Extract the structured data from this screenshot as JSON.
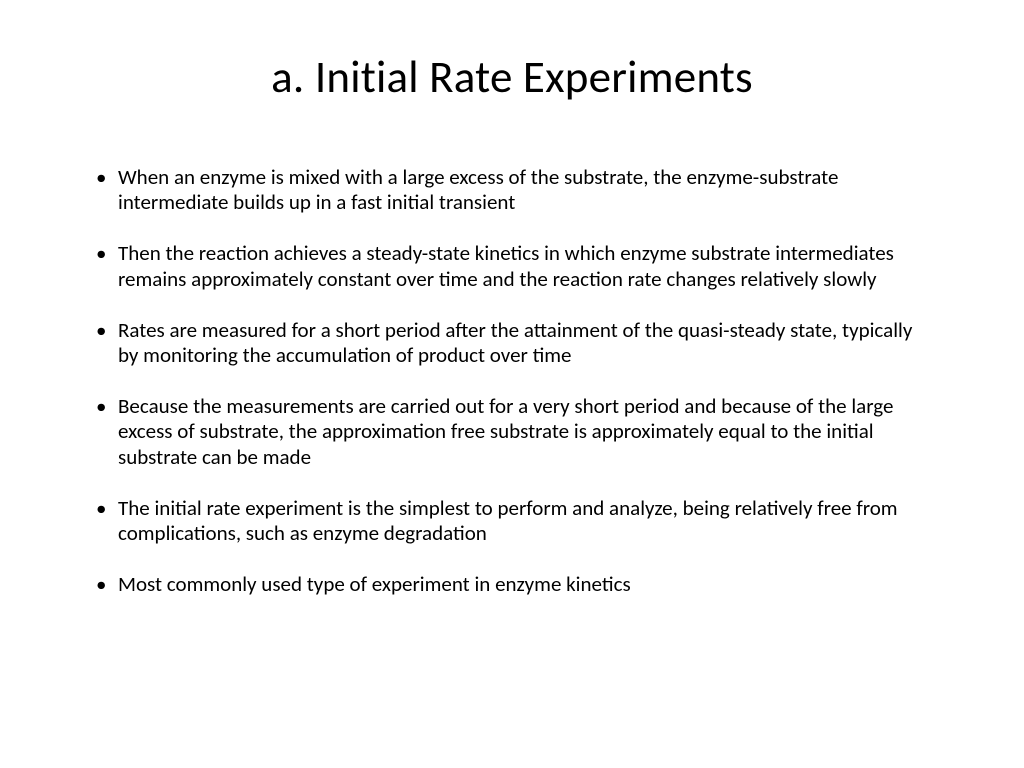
{
  "slide": {
    "title": "a. Initial Rate Experiments",
    "bullets": [
      "When an enzyme is mixed with a large excess of the substrate, the enzyme-substrate intermediate builds up in a fast initial transient",
      "Then the reaction achieves a steady-state kinetics in which enzyme substrate intermediates remains approximately constant over time and the reaction rate changes relatively slowly",
      "Rates are measured for a short period after the attainment of the quasi-steady state, typically by monitoring the accumulation of product over time",
      "Because the measurements are carried out for a very short period and because of the large excess of substrate, the approximation free substrate is approximately equal to the initial substrate can be made",
      "The initial rate experiment is the simplest to perform and analyze, being relatively free from complications, such as enzyme degradation",
      "Most commonly used type of experiment in enzyme kinetics"
    ]
  },
  "style": {
    "background_color": "#ffffff",
    "text_color": "#000000",
    "title_fontsize": 45,
    "body_fontsize": 21,
    "font_family": "Calibri"
  }
}
